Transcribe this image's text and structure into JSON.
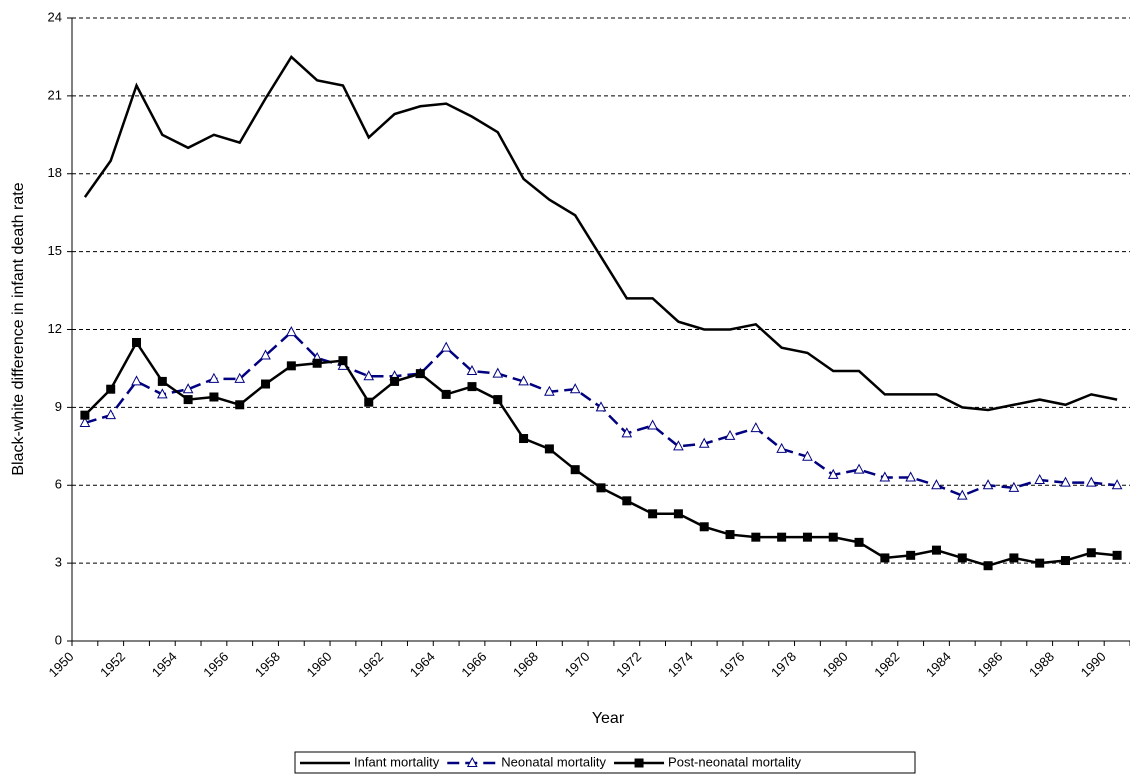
{
  "chart_data": {
    "type": "line",
    "x_label": "Year",
    "y_label": "Black-white difference in infant death rate",
    "categories": [
      "1950",
      null,
      "1952",
      null,
      "1954",
      null,
      "1956",
      null,
      "1958",
      null,
      "1960",
      null,
      "1962",
      null,
      "1964",
      null,
      "1966",
      null,
      "1968",
      null,
      "1970",
      null,
      "1972",
      null,
      "1974",
      null,
      "1976",
      null,
      "1978",
      null,
      "1980",
      null,
      "1982",
      null,
      "1984",
      null,
      "1986",
      null,
      "1988",
      null,
      "1990"
    ],
    "series": [
      {
        "name": "Infant mortality",
        "color": "#000000",
        "dash": false,
        "marker": "none",
        "values": [
          17.1,
          18.5,
          21.4,
          19.5,
          19.0,
          19.5,
          19.2,
          20.9,
          22.5,
          21.6,
          21.4,
          19.4,
          20.3,
          20.6,
          20.7,
          20.2,
          19.6,
          17.8,
          17.0,
          16.4,
          14.8,
          13.2,
          13.2,
          12.3,
          12.0,
          12.0,
          12.2,
          11.3,
          11.1,
          10.4,
          10.4,
          9.5,
          9.5,
          9.5,
          9.0,
          8.9,
          9.1,
          9.3,
          9.1,
          9.5,
          9.3
        ]
      },
      {
        "name": "Neonatal mortality",
        "color": "#000080",
        "dash": true,
        "marker": "triangle",
        "values": [
          8.4,
          8.7,
          10.0,
          9.5,
          9.7,
          10.1,
          10.1,
          11.0,
          11.9,
          10.9,
          10.6,
          10.2,
          10.2,
          10.3,
          11.3,
          10.4,
          10.3,
          10.0,
          9.6,
          9.7,
          9.0,
          8.0,
          8.3,
          7.5,
          7.6,
          7.9,
          8.2,
          7.4,
          7.1,
          6.4,
          6.6,
          6.3,
          6.3,
          6.0,
          5.6,
          6.0,
          5.9,
          6.2,
          6.1,
          6.1,
          6.0
        ]
      },
      {
        "name": "Post-neonatal mortality",
        "color": "#000000",
        "dash": false,
        "marker": "square",
        "values": [
          8.7,
          9.7,
          11.5,
          10.0,
          9.3,
          9.4,
          9.1,
          9.9,
          10.6,
          10.7,
          10.8,
          9.2,
          10.0,
          10.3,
          9.5,
          9.8,
          9.3,
          7.8,
          7.4,
          6.6,
          5.9,
          5.4,
          4.9,
          4.9,
          4.4,
          4.1,
          4.0,
          4.0,
          4.0,
          4.0,
          3.8,
          3.2,
          3.3,
          3.5,
          3.2,
          2.9,
          3.2,
          3.0,
          3.1,
          3.4,
          3.3
        ]
      }
    ],
    "ylim": [
      0,
      24
    ],
    "yticks": [
      0,
      3,
      6,
      9,
      12,
      15,
      18,
      21,
      24
    ],
    "grid": true
  }
}
